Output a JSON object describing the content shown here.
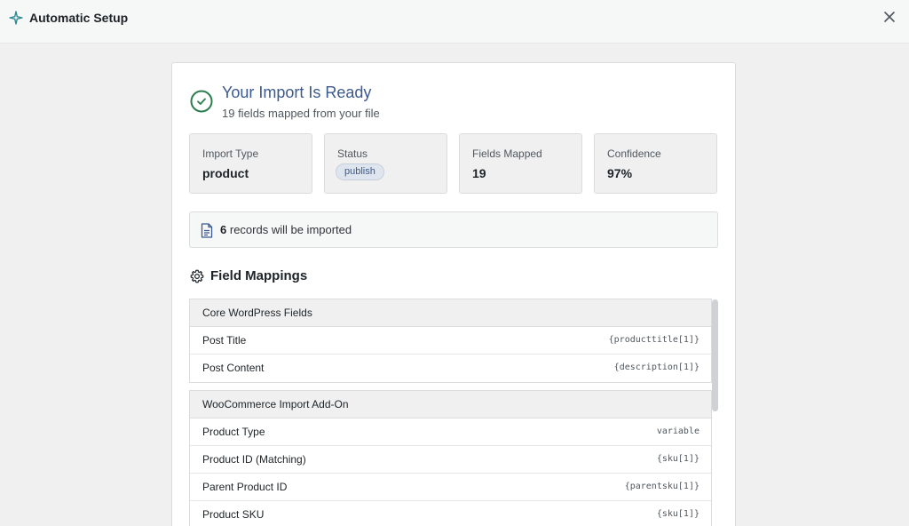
{
  "header": {
    "title": "Automatic Setup",
    "icon": "sparkle-icon",
    "close_icon": "close-icon"
  },
  "summary": {
    "title": "Your Import Is Ready",
    "subtitle": "19 fields mapped from your file"
  },
  "stats": [
    {
      "label": "Import Type",
      "value": "product"
    },
    {
      "label": "Status",
      "value": "publish"
    },
    {
      "label": "Fields Mapped",
      "value": "19"
    },
    {
      "label": "Confidence",
      "value": "97%"
    }
  ],
  "records": {
    "count": "6",
    "text": "records will be imported"
  },
  "field_mappings": {
    "title": "Field Mappings",
    "groups": [
      {
        "title": "Core WordPress Fields",
        "rows": [
          {
            "name": "Post Title",
            "value": "{producttitle[1]}"
          },
          {
            "name": "Post Content",
            "value": "{description[1]}"
          }
        ]
      },
      {
        "title": "WooCommerce Import Add-On",
        "rows": [
          {
            "name": "Product Type",
            "value": "variable"
          },
          {
            "name": "Product ID (Matching)",
            "value": "{sku[1]}"
          },
          {
            "name": "Parent Product ID",
            "value": "{parentsku[1]}"
          },
          {
            "name": "Product SKU",
            "value": "{sku[1]}"
          }
        ]
      }
    ]
  },
  "colors": {
    "accent": "#3c5a8f",
    "success": "#2e7d4f",
    "sparkle": "#2e8a93"
  }
}
